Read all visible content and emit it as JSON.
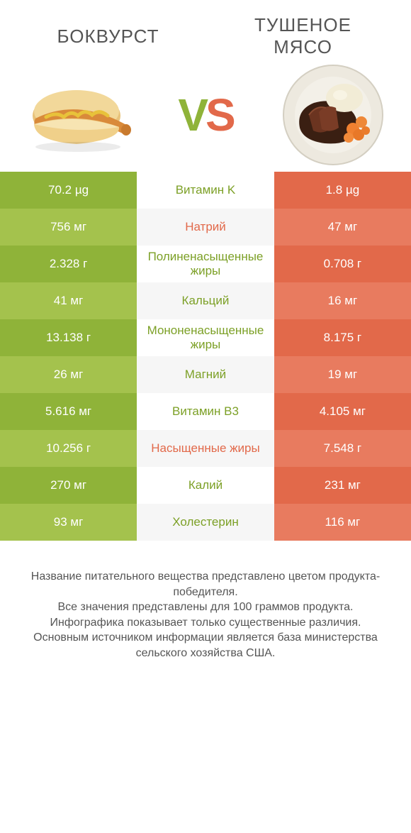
{
  "colors": {
    "green_main": "#8fb339",
    "green_alt": "#a4c24d",
    "orange_main": "#e2694a",
    "orange_alt": "#e87b5f",
    "mid_bg": "#ffffff",
    "mid_alt": "#f6f6f6",
    "label_green": "#7ca026",
    "label_orange": "#e2694a",
    "text_gray": "#555555"
  },
  "header": {
    "title_left": "БОКВУРСТ",
    "title_right": "ТУШЕНОЕ МЯСО",
    "vs_left": "V",
    "vs_right": "S"
  },
  "rows": [
    {
      "left": "70.2 µg",
      "label": "Витамин K",
      "right": "1.8 µg",
      "winner": "left"
    },
    {
      "left": "756 мг",
      "label": "Натрий",
      "right": "47 мг",
      "winner": "right"
    },
    {
      "left": "2.328 г",
      "label": "Полиненасыщенные жиры",
      "right": "0.708 г",
      "winner": "left"
    },
    {
      "left": "41 мг",
      "label": "Кальций",
      "right": "16 мг",
      "winner": "left"
    },
    {
      "left": "13.138 г",
      "label": "Мононенасыщенные жиры",
      "right": "8.175 г",
      "winner": "left"
    },
    {
      "left": "26 мг",
      "label": "Магний",
      "right": "19 мг",
      "winner": "left"
    },
    {
      "left": "5.616 мг",
      "label": "Витамин B3",
      "right": "4.105 мг",
      "winner": "left"
    },
    {
      "left": "10.256 г",
      "label": "Насыщенные жиры",
      "right": "7.548 г",
      "winner": "right"
    },
    {
      "left": "270 мг",
      "label": "Калий",
      "right": "231 мг",
      "winner": "left"
    },
    {
      "left": "93 мг",
      "label": "Холестерин",
      "right": "116 мг",
      "winner": "left"
    }
  ],
  "footer": {
    "line1": "Название питательного вещества представлено цветом продукта-победителя.",
    "line2": "Все значения представлены для 100 граммов продукта.",
    "line3": "Инфографика показывает только существенные различия.",
    "line4": "Основным источником информации является база министерства сельского хозяйства США."
  }
}
